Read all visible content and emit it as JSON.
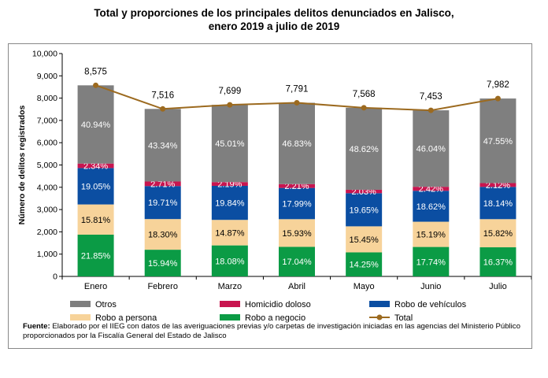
{
  "title_line1": "Total y proporciones de los principales delitos denunciados en Jalisco,",
  "title_line2": "enero 2019 a julio de 2019",
  "source_label": "Fuente:",
  "source_text": " Elaborado por el IIEG  con datos de las averiguaciones previas y/o carpetas de investigación iniciadas en las agencias del Ministerio Público proporcionados por la Fiscalía General del Estado de Jalisco",
  "chart_data": {
    "type": "bar",
    "stacked": true,
    "ylabel": "Número de delitos registrados",
    "ylim": [
      0,
      10000
    ],
    "yticks": [
      "0",
      "1,000",
      "2,000",
      "3,000",
      "4,000",
      "5,000",
      "6,000",
      "7,000",
      "8,000",
      "9,000",
      "10,000"
    ],
    "categories": [
      "Enero",
      "Febrero",
      "Marzo",
      "Abril",
      "Mayo",
      "Junio",
      "Julio"
    ],
    "series": [
      {
        "name": "Robo a negocio",
        "color": "#0b9b45",
        "values": [
          21.85,
          15.94,
          18.08,
          17.04,
          14.25,
          17.74,
          16.37
        ],
        "labels": [
          "21.85%",
          "15.94%",
          "18.08%",
          "17.04%",
          "14.25%",
          "17.74%",
          "16.37%"
        ]
      },
      {
        "name": "Robo a persona",
        "color": "#f7d39a",
        "values": [
          15.81,
          18.3,
          14.87,
          15.93,
          15.45,
          15.19,
          15.82
        ],
        "labels": [
          "15.81%",
          "18.30%",
          "14.87%",
          "15.93%",
          "15.45%",
          "15.19%",
          "15.82%"
        ]
      },
      {
        "name": "Robo de vehículos",
        "color": "#0b4ea2",
        "values": [
          19.05,
          19.71,
          19.84,
          17.99,
          19.65,
          18.62,
          18.14
        ],
        "labels": [
          "19.05%",
          "19.71%",
          "19.84%",
          "17.99%",
          "19.65%",
          "18.62%",
          "18.14%"
        ]
      },
      {
        "name": "Homicidio doloso",
        "color": "#c8154f",
        "values": [
          2.34,
          2.71,
          2.19,
          2.21,
          2.03,
          2.42,
          2.12
        ],
        "labels": [
          "2.34%",
          "2.71%",
          "2.19%",
          "2.21%",
          "2.03%",
          "2.42%",
          "2.12%"
        ]
      },
      {
        "name": "Otros",
        "color": "#7f7f7f",
        "values": [
          40.94,
          43.34,
          45.01,
          46.83,
          48.62,
          46.04,
          47.55
        ],
        "labels": [
          "40.94%",
          "43.34%",
          "45.01%",
          "46.83%",
          "48.62%",
          "46.04%",
          "47.55%"
        ]
      }
    ],
    "total": {
      "name": "Total",
      "color": "#9c6a1f",
      "values": [
        8575,
        7516,
        7699,
        7791,
        7568,
        7453,
        7982
      ],
      "labels": [
        "8,575",
        "7,516",
        "7,699",
        "7,791",
        "7,568",
        "7,453",
        "7,982"
      ]
    },
    "legend": [
      {
        "name": "Otros",
        "kind": "box",
        "color": "#7f7f7f"
      },
      {
        "name": "Homicidio doloso",
        "kind": "box",
        "color": "#c8154f"
      },
      {
        "name": "Robo de vehículos",
        "kind": "box",
        "color": "#0b4ea2"
      },
      {
        "name": "Robo a persona",
        "kind": "box",
        "color": "#f7d39a"
      },
      {
        "name": "Robo a negocio",
        "kind": "box",
        "color": "#0b9b45"
      },
      {
        "name": "Total",
        "kind": "line",
        "color": "#9c6a1f"
      }
    ],
    "legend_position": "bottom",
    "grid": false
  }
}
